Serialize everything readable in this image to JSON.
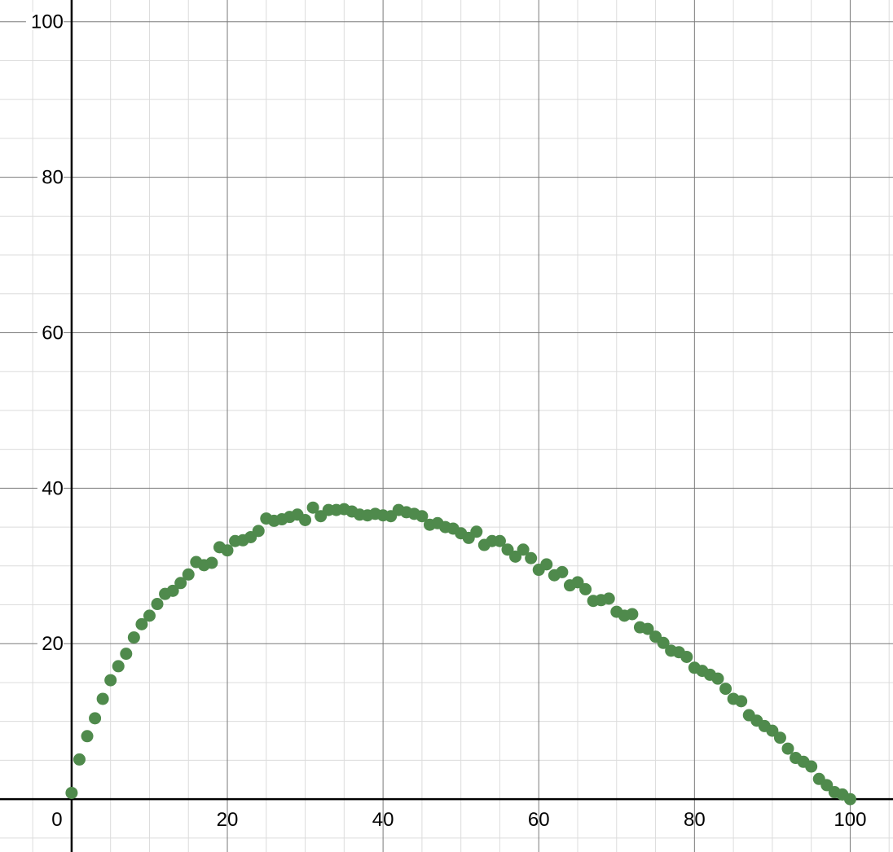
{
  "chart_data": {
    "type": "scatter",
    "title": "",
    "xlabel": "",
    "ylabel": "",
    "xlim": [
      -9.2,
      105.5
    ],
    "ylim": [
      -6.8,
      102.8
    ],
    "grid": true,
    "x_ticks": [
      "0",
      "20",
      "40",
      "60",
      "80",
      "100"
    ],
    "y_ticks": [
      "20",
      "40",
      "60",
      "80",
      "100"
    ],
    "colors": {
      "points": "#4f8a4c",
      "grid_major": "#7a7a7a",
      "grid_minor": "#dcdcdc",
      "axis": "#000000"
    },
    "series": [
      {
        "x": [
          0,
          1,
          2,
          3,
          4,
          5,
          6,
          7,
          8,
          9,
          10,
          11,
          12,
          13,
          14,
          15,
          16,
          17,
          18,
          19,
          20,
          21,
          22,
          23,
          24,
          25,
          26,
          27,
          28,
          29,
          30,
          31,
          32,
          33,
          34,
          35,
          36,
          37,
          38,
          39,
          40,
          41,
          42,
          43,
          44,
          45,
          46,
          47,
          48,
          49,
          50,
          51,
          52,
          53,
          54,
          55,
          56,
          57,
          58,
          59,
          60,
          61,
          62,
          63,
          64,
          65,
          66,
          67,
          68,
          69,
          70,
          71,
          72,
          73,
          74,
          75,
          76,
          77,
          78,
          79,
          80,
          81,
          82,
          83,
          84,
          85,
          86,
          87,
          88,
          89,
          90,
          91,
          92,
          93,
          94,
          95,
          96,
          97,
          98,
          99,
          100
        ],
        "y": [
          0.8,
          5.1,
          8.1,
          10.4,
          12.9,
          15.3,
          17.1,
          18.7,
          20.8,
          22.5,
          23.6,
          25.1,
          26.4,
          26.8,
          27.8,
          28.9,
          30.5,
          30.1,
          30.4,
          32.4,
          32.0,
          33.2,
          33.3,
          33.7,
          34.5,
          36.1,
          35.8,
          36.0,
          36.3,
          36.6,
          35.9,
          37.5,
          36.4,
          37.2,
          37.2,
          37.3,
          37.0,
          36.6,
          36.5,
          36.7,
          36.5,
          36.4,
          37.2,
          36.9,
          36.7,
          36.4,
          35.3,
          35.5,
          35.0,
          34.8,
          34.2,
          33.6,
          34.4,
          32.7,
          33.2,
          33.2,
          32.1,
          31.2,
          32.1,
          31.0,
          29.5,
          30.2,
          28.8,
          29.2,
          27.5,
          27.9,
          27.0,
          25.5,
          25.6,
          25.8,
          24.1,
          23.6,
          23.8,
          22.1,
          21.9,
          20.9,
          20.1,
          19.1,
          18.9,
          18.3,
          16.9,
          16.5,
          16.0,
          15.5,
          14.2,
          12.9,
          12.6,
          10.8,
          10.1,
          9.4,
          8.8,
          7.9,
          6.5,
          5.3,
          4.8,
          4.2,
          2.6,
          1.8,
          0.9,
          0.6,
          0.0
        ]
      }
    ]
  }
}
